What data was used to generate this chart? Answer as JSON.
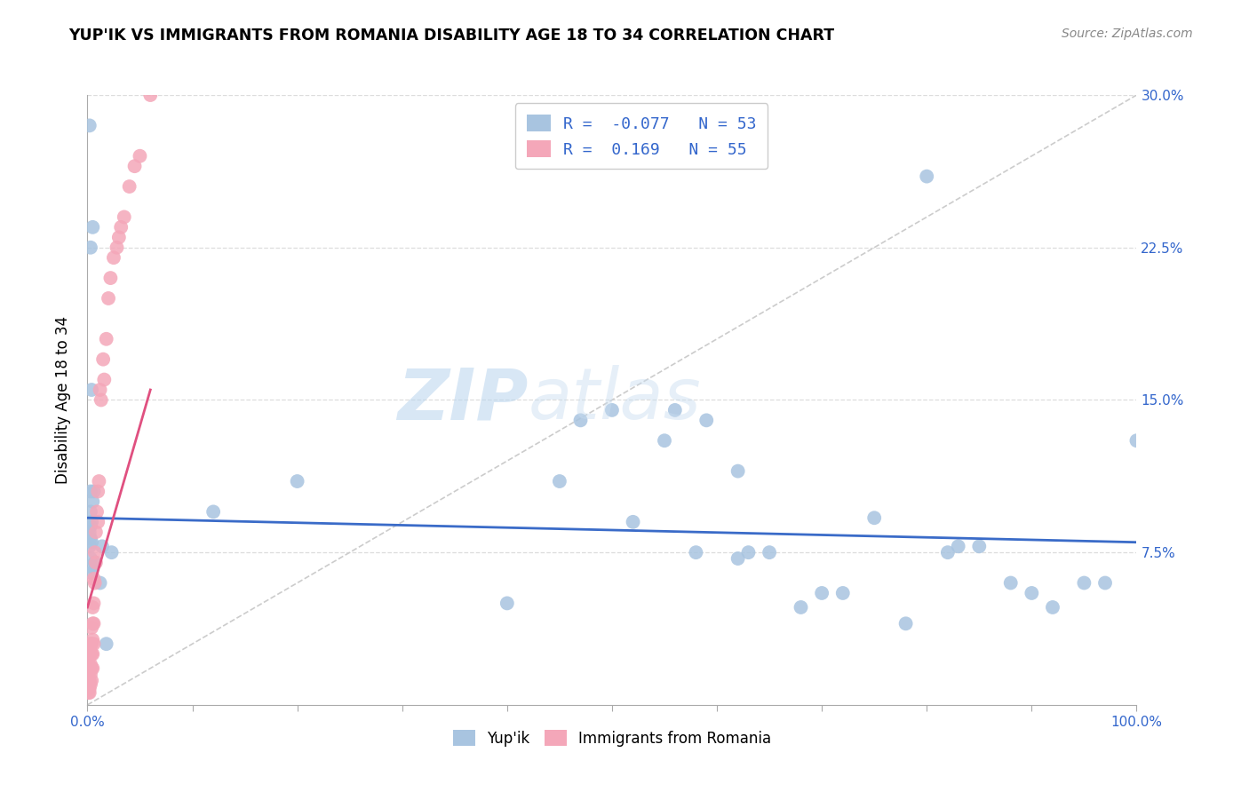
{
  "title": "YUP'IK VS IMMIGRANTS FROM ROMANIA DISABILITY AGE 18 TO 34 CORRELATION CHART",
  "source": "Source: ZipAtlas.com",
  "ylabel_label": "Disability Age 18 to 34",
  "legend_labels": [
    "Yup'ik",
    "Immigrants from Romania"
  ],
  "R_blue": -0.077,
  "N_blue": 53,
  "R_pink": 0.169,
  "N_pink": 55,
  "blue_color": "#a8c4e0",
  "pink_color": "#f4a7b9",
  "blue_line_color": "#3a6bc8",
  "pink_line_color": "#e05080",
  "watermark_zip": "ZIP",
  "watermark_atlas": "atlas",
  "xlim": [
    0.0,
    1.0
  ],
  "ylim": [
    0.0,
    0.3
  ],
  "blue_scatter_x": [
    0.002,
    0.005,
    0.003,
    0.004,
    0.003,
    0.006,
    0.005,
    0.003,
    0.004,
    0.003,
    0.002,
    0.001,
    0.003,
    0.004,
    0.002,
    0.014,
    0.023,
    0.003,
    0.007,
    0.003,
    0.004,
    0.012,
    0.018,
    0.12,
    0.2,
    0.47,
    0.5,
    0.52,
    0.56,
    0.59,
    0.62,
    0.63,
    0.65,
    0.7,
    0.72,
    0.55,
    0.62,
    0.45,
    0.8,
    0.82,
    0.85,
    0.88,
    0.9,
    0.92,
    0.95,
    0.97,
    1.0,
    0.75,
    0.4,
    0.78,
    0.83,
    0.58,
    0.68
  ],
  "blue_scatter_y": [
    0.285,
    0.235,
    0.225,
    0.155,
    0.105,
    0.105,
    0.1,
    0.095,
    0.09,
    0.088,
    0.085,
    0.083,
    0.082,
    0.08,
    0.078,
    0.078,
    0.075,
    0.072,
    0.07,
    0.068,
    0.065,
    0.06,
    0.03,
    0.095,
    0.11,
    0.14,
    0.145,
    0.09,
    0.145,
    0.14,
    0.072,
    0.075,
    0.075,
    0.055,
    0.055,
    0.13,
    0.115,
    0.11,
    0.26,
    0.075,
    0.078,
    0.06,
    0.055,
    0.048,
    0.06,
    0.06,
    0.13,
    0.092,
    0.05,
    0.04,
    0.078,
    0.075,
    0.048
  ],
  "pink_scatter_x": [
    0.0005,
    0.0005,
    0.001,
    0.001,
    0.001,
    0.0015,
    0.0015,
    0.002,
    0.002,
    0.002,
    0.002,
    0.002,
    0.003,
    0.003,
    0.003,
    0.003,
    0.003,
    0.004,
    0.004,
    0.004,
    0.004,
    0.004,
    0.005,
    0.005,
    0.005,
    0.005,
    0.005,
    0.006,
    0.006,
    0.006,
    0.006,
    0.007,
    0.007,
    0.008,
    0.008,
    0.009,
    0.01,
    0.01,
    0.011,
    0.012,
    0.013,
    0.015,
    0.016,
    0.018,
    0.02,
    0.022,
    0.025,
    0.028,
    0.03,
    0.032,
    0.035,
    0.04,
    0.045,
    0.05,
    0.06
  ],
  "pink_scatter_y": [
    0.01,
    0.008,
    0.012,
    0.008,
    0.006,
    0.02,
    0.012,
    0.025,
    0.018,
    0.012,
    0.008,
    0.006,
    0.03,
    0.025,
    0.02,
    0.015,
    0.01,
    0.038,
    0.03,
    0.025,
    0.018,
    0.012,
    0.048,
    0.04,
    0.032,
    0.025,
    0.018,
    0.062,
    0.05,
    0.04,
    0.03,
    0.075,
    0.06,
    0.085,
    0.07,
    0.095,
    0.105,
    0.09,
    0.11,
    0.155,
    0.15,
    0.17,
    0.16,
    0.18,
    0.2,
    0.21,
    0.22,
    0.225,
    0.23,
    0.235,
    0.24,
    0.255,
    0.265,
    0.27,
    0.3
  ],
  "blue_trend_x": [
    0.0,
    1.0
  ],
  "blue_trend_y": [
    0.092,
    0.08
  ],
  "pink_trend_x": [
    0.0,
    0.06
  ],
  "pink_trend_y": [
    0.048,
    0.155
  ]
}
